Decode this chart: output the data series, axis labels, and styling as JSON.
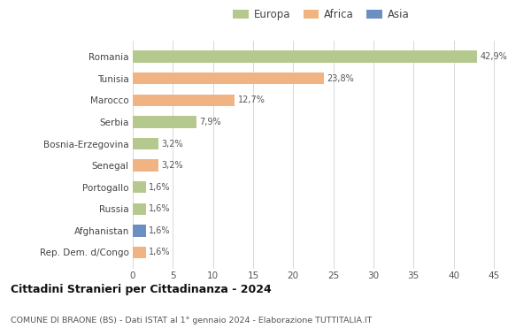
{
  "categories": [
    "Romania",
    "Tunisia",
    "Marocco",
    "Serbia",
    "Bosnia-Erzegovina",
    "Senegal",
    "Portogallo",
    "Russia",
    "Afghanistan",
    "Rep. Dem. d/Congo"
  ],
  "values": [
    42.9,
    23.8,
    12.7,
    7.9,
    3.2,
    3.2,
    1.6,
    1.6,
    1.6,
    1.6
  ],
  "labels": [
    "42,9%",
    "23,8%",
    "12,7%",
    "7,9%",
    "3,2%",
    "3,2%",
    "1,6%",
    "1,6%",
    "1,6%",
    "1,6%"
  ],
  "colors": [
    "#b5c98e",
    "#f0b482",
    "#f0b482",
    "#b5c98e",
    "#b5c98e",
    "#f0b482",
    "#b5c98e",
    "#b5c98e",
    "#6b8fc2",
    "#f0b482"
  ],
  "legend": [
    {
      "label": "Europa",
      "color": "#b5c98e"
    },
    {
      "label": "Africa",
      "color": "#f0b482"
    },
    {
      "label": "Asia",
      "color": "#6b8fc2"
    }
  ],
  "title": "Cittadini Stranieri per Cittadinanza - 2024",
  "subtitle": "COMUNE DI BRAONE (BS) - Dati ISTAT al 1° gennaio 2024 - Elaborazione TUTTITALIA.IT",
  "xlim": [
    0,
    47
  ],
  "xticks": [
    0,
    5,
    10,
    15,
    20,
    25,
    30,
    35,
    40,
    45
  ],
  "background_color": "#ffffff",
  "grid_color": "#d8d8d8"
}
